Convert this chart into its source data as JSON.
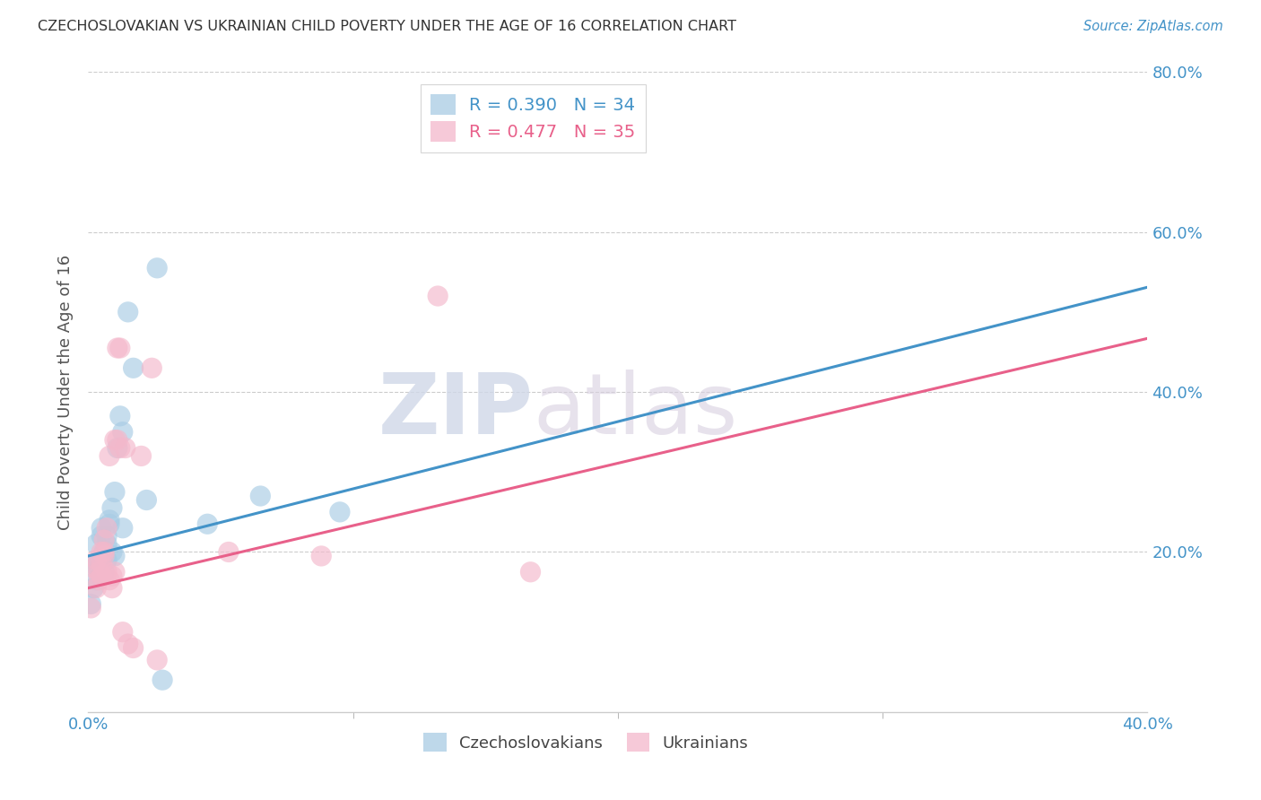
{
  "title": "CZECHOSLOVAKIAN VS UKRAINIAN CHILD POVERTY UNDER THE AGE OF 16 CORRELATION CHART",
  "source": "Source: ZipAtlas.com",
  "ylabel": "Child Poverty Under the Age of 16",
  "legend_czech": "R = 0.390   N = 34",
  "legend_ukr": "R = 0.477   N = 35",
  "legend_label_czech": "Czechoslovakians",
  "legend_label_ukr": "Ukrainians",
  "czech_color": "#a8cce4",
  "ukr_color": "#f4b8cb",
  "line_czech_color": "#4393c8",
  "line_ukr_color": "#e8608a",
  "watermark_zip": "ZIP",
  "watermark_atlas": "atlas",
  "xlim": [
    0.0,
    0.4
  ],
  "ylim": [
    0.0,
    0.8
  ],
  "background_color": "#ffffff",
  "grid_color": "#cccccc",
  "title_color": "#333333",
  "tick_color": "#4393c8",
  "ylabel_color": "#555555",
  "line_czech_intercept": 0.195,
  "line_czech_slope": 0.84,
  "line_ukr_intercept": 0.155,
  "line_ukr_slope": 0.78,
  "czech_points": [
    [
      0.001,
      0.135
    ],
    [
      0.002,
      0.155
    ],
    [
      0.002,
      0.185
    ],
    [
      0.003,
      0.21
    ],
    [
      0.003,
      0.165
    ],
    [
      0.004,
      0.19
    ],
    [
      0.004,
      0.18
    ],
    [
      0.005,
      0.22
    ],
    [
      0.005,
      0.23
    ],
    [
      0.005,
      0.17
    ],
    [
      0.006,
      0.195
    ],
    [
      0.006,
      0.2
    ],
    [
      0.006,
      0.175
    ],
    [
      0.007,
      0.19
    ],
    [
      0.007,
      0.22
    ],
    [
      0.007,
      0.21
    ],
    [
      0.008,
      0.235
    ],
    [
      0.008,
      0.24
    ],
    [
      0.009,
      0.255
    ],
    [
      0.009,
      0.2
    ],
    [
      0.01,
      0.275
    ],
    [
      0.01,
      0.195
    ],
    [
      0.011,
      0.33
    ],
    [
      0.012,
      0.37
    ],
    [
      0.013,
      0.35
    ],
    [
      0.013,
      0.23
    ],
    [
      0.015,
      0.5
    ],
    [
      0.017,
      0.43
    ],
    [
      0.022,
      0.265
    ],
    [
      0.026,
      0.555
    ],
    [
      0.028,
      0.04
    ],
    [
      0.045,
      0.235
    ],
    [
      0.065,
      0.27
    ],
    [
      0.095,
      0.25
    ]
  ],
  "ukr_points": [
    [
      0.001,
      0.13
    ],
    [
      0.002,
      0.18
    ],
    [
      0.003,
      0.155
    ],
    [
      0.003,
      0.19
    ],
    [
      0.004,
      0.175
    ],
    [
      0.004,
      0.165
    ],
    [
      0.005,
      0.2
    ],
    [
      0.005,
      0.185
    ],
    [
      0.005,
      0.17
    ],
    [
      0.006,
      0.195
    ],
    [
      0.006,
      0.215
    ],
    [
      0.006,
      0.2
    ],
    [
      0.007,
      0.23
    ],
    [
      0.007,
      0.175
    ],
    [
      0.008,
      0.32
    ],
    [
      0.008,
      0.165
    ],
    [
      0.009,
      0.155
    ],
    [
      0.009,
      0.17
    ],
    [
      0.01,
      0.34
    ],
    [
      0.01,
      0.175
    ],
    [
      0.011,
      0.34
    ],
    [
      0.011,
      0.455
    ],
    [
      0.012,
      0.455
    ],
    [
      0.012,
      0.33
    ],
    [
      0.013,
      0.1
    ],
    [
      0.014,
      0.33
    ],
    [
      0.015,
      0.085
    ],
    [
      0.017,
      0.08
    ],
    [
      0.02,
      0.32
    ],
    [
      0.024,
      0.43
    ],
    [
      0.026,
      0.065
    ],
    [
      0.053,
      0.2
    ],
    [
      0.088,
      0.195
    ],
    [
      0.132,
      0.52
    ],
    [
      0.167,
      0.175
    ]
  ]
}
